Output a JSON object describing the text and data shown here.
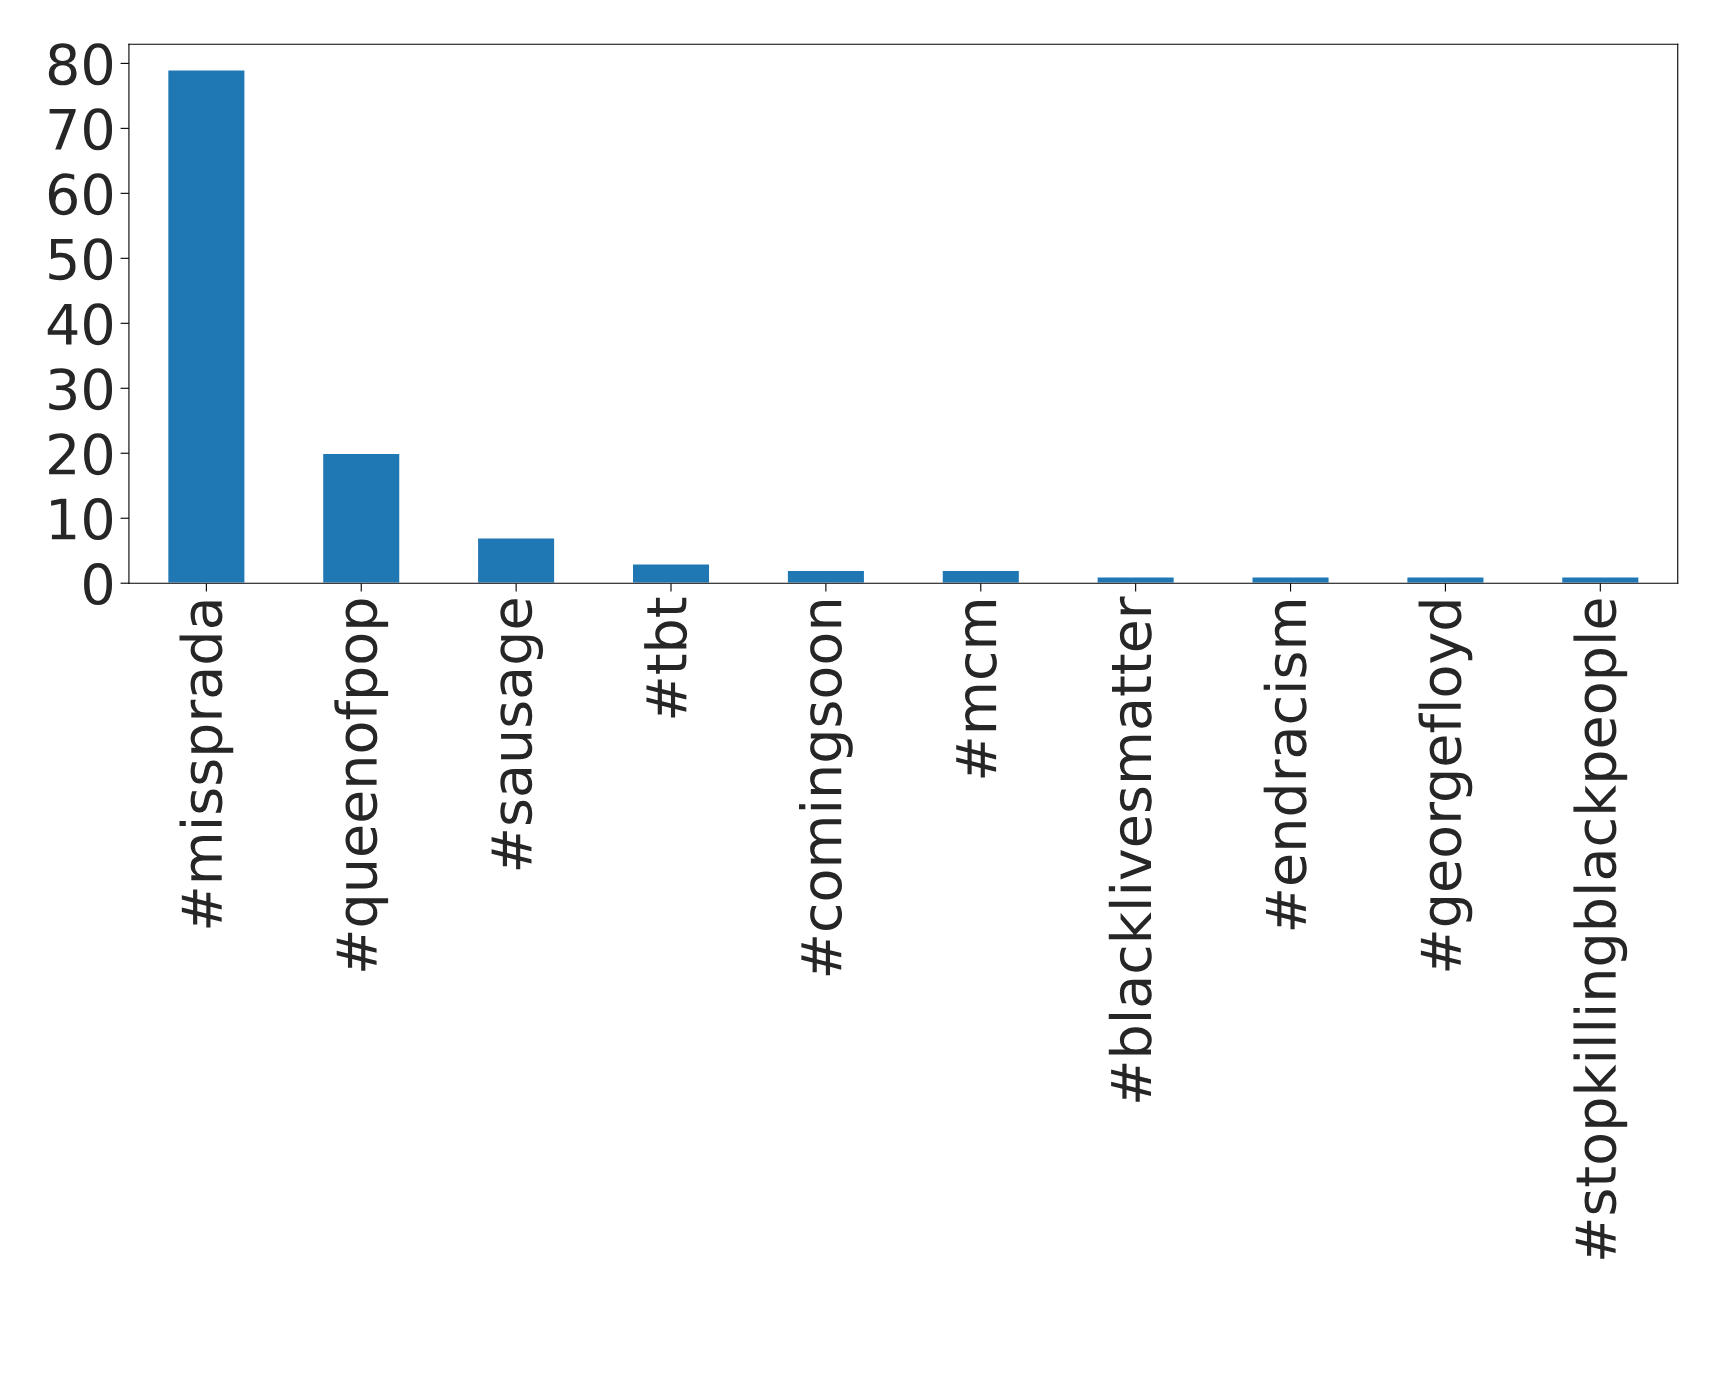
{
  "chart_data": {
    "type": "bar",
    "categories": [
      "#missprada",
      "#queenofpop",
      "#sausage",
      "#tbt",
      "#comingsoon",
      "#mcm",
      "#blacklivesmatter",
      "#endracism",
      "#georgefloyd",
      "#stopkillingblackpeople"
    ],
    "values": [
      79,
      20,
      7,
      3,
      2,
      2,
      1,
      1,
      1,
      1
    ],
    "color": "#1f77b4",
    "ylim": [
      0,
      82.95
    ],
    "yticks": [
      0,
      10,
      20,
      30,
      40,
      50,
      60,
      70,
      80
    ],
    "grid": false,
    "legend": false
  }
}
